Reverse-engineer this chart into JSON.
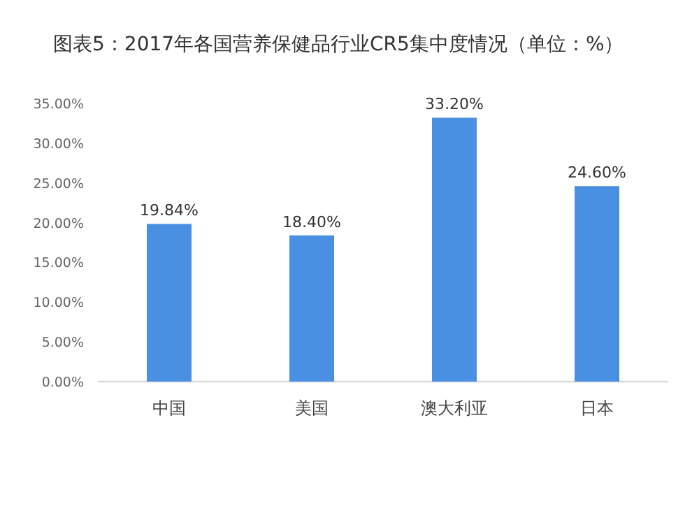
{
  "chart_data": {
    "type": "bar",
    "title": "图表5：2017年各国营养保健品行业CR5集中度情况（单位：%）",
    "categories": [
      "中国",
      "美国",
      "澳大利亚",
      "日本"
    ],
    "values": [
      19.84,
      18.4,
      33.2,
      24.6
    ],
    "value_labels": [
      "19.84%",
      "18.40%",
      "33.20%",
      "24.60%"
    ],
    "color": "#4a90e2",
    "ylim": [
      0,
      35
    ],
    "yticks": [
      {
        "value": 0,
        "label": "0.00%"
      },
      {
        "value": 5,
        "label": "5.00%"
      },
      {
        "value": 10,
        "label": "10.00%"
      },
      {
        "value": 15,
        "label": "15.00%"
      },
      {
        "value": 20,
        "label": "20.00%"
      },
      {
        "value": 25,
        "label": "25.00%"
      },
      {
        "value": 30,
        "label": "30.00%"
      },
      {
        "value": 35,
        "label": "35.00%"
      }
    ],
    "grid": false
  }
}
